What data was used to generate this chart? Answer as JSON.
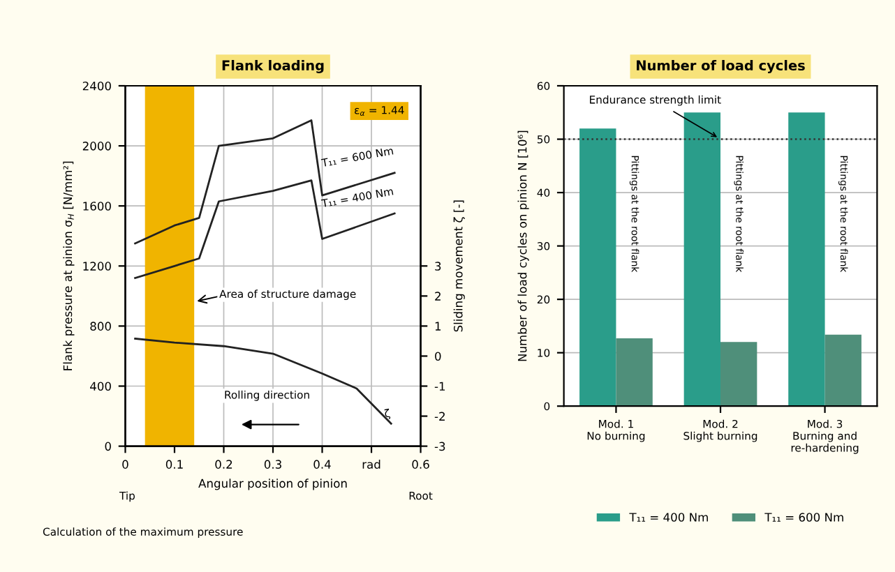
{
  "chart_data": [
    {
      "type": "line",
      "title": "Flank loading",
      "xlabel": "Angular position of pinion",
      "ylabel": "Flank pressure at pinion σ$_{H}$ [N/mm²]",
      "y2label": "Sliding movement ζ [-]",
      "xlim": [
        0,
        0.6
      ],
      "xticks": [
        0,
        0.1,
        0.2,
        0.3,
        0.4,
        {
          "value": 0.5,
          "label": "rad"
        },
        0.6
      ],
      "ylim": [
        0,
        2400
      ],
      "yticks": [
        0,
        400,
        800,
        1200,
        1600,
        2000,
        2400
      ],
      "y2lim": [
        -3,
        9
      ],
      "y2ticks": [
        -3,
        -2,
        -1,
        0,
        1,
        2,
        3
      ],
      "grid": true,
      "legend": false,
      "marker": "none",
      "line_style": "solid",
      "series": [
        {
          "name": "T₁₁ = 600 Nm",
          "color": "#222222",
          "x": [
            0.02,
            0.1,
            0.15,
            0.19,
            0.3,
            0.378,
            0.4,
            0.547
          ],
          "values": [
            1350,
            1470,
            1520,
            2000,
            2050,
            2170,
            1670,
            1820
          ]
        },
        {
          "name": "T₁₁ = 400 Nm",
          "color": "#222222",
          "x": [
            0.02,
            0.1,
            0.15,
            0.19,
            0.3,
            0.378,
            0.4,
            0.547
          ],
          "values": [
            1120,
            1200,
            1250,
            1630,
            1700,
            1770,
            1380,
            1550
          ]
        },
        {
          "name": "ζ",
          "color": "#222222",
          "axis": "y2",
          "x": [
            0.02,
            0.1,
            0.2,
            0.3,
            0.4,
            0.47,
            0.54
          ],
          "values": [
            0.58,
            0.45,
            0.33,
            0.08,
            -0.58,
            -1.08,
            -2.25
          ]
        }
      ],
      "bands": [
        {
          "axis": "x",
          "from": 0.04,
          "to": 0.14,
          "color": "#f0b400"
        }
      ],
      "annotations": [
        "Area of structure damage",
        "ε$_{α}$ = 1.44",
        "Rolling direction",
        "Tip",
        "Root",
        "Calculation of the maximum pressure"
      ]
    },
    {
      "type": "bar",
      "title": "Number of load cycles",
      "ylabel": "Number of load cycles on pinion N [10⁶]",
      "categories": [
        "Mod. 1\nNo burning",
        "Mod. 2\nSlight burning",
        "Mod. 3\nBurning and\nre-hardening"
      ],
      "ylim": [
        0,
        60
      ],
      "yticks": [
        0,
        10,
        20,
        30,
        40,
        50,
        60
      ],
      "grid": "y",
      "legend": "bottom",
      "series": [
        {
          "name": "T₁₁ = 400 Nm",
          "color": "#2a9d8a",
          "values": [
            52,
            55,
            55
          ]
        },
        {
          "name": "T₁₁ = 600 Nm",
          "color": "#4f8f7a",
          "values": [
            12.7,
            12,
            13.4
          ]
        }
      ],
      "ref_lines": [
        {
          "axis": "y",
          "value": 50,
          "label": "Endurance strength limit",
          "color": "#333333",
          "line_style": "dotted"
        }
      ],
      "annotations": [
        "Pittings at the root flank",
        "Pittings at the root flank",
        "Pittings at the root flank"
      ]
    }
  ]
}
